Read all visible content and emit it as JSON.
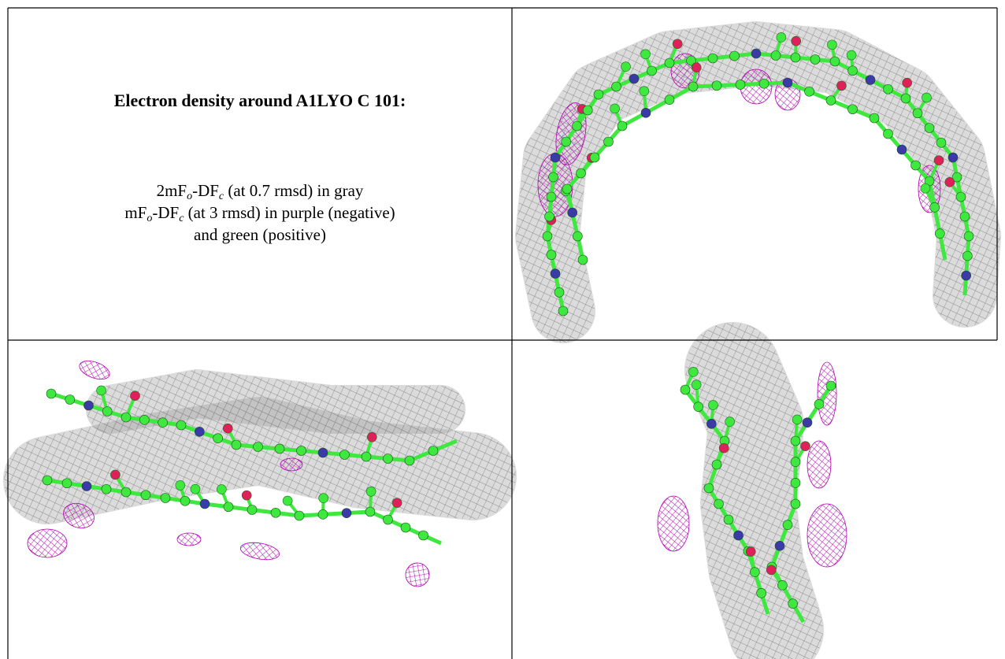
{
  "heading": "Electron density around A1LYO C 101:",
  "legend": [
    {
      "pre": "2mF",
      "sub1": "o",
      "mid": "-DF",
      "sub2": "c",
      "post": " (at 0.7 rmsd) in gray"
    },
    {
      "pre": "mF",
      "sub1": "o",
      "mid": "-DF",
      "sub2": "c",
      "post": " (at 3 rmsd) in purple (negative)"
    },
    {
      "post": "and green (positive)"
    }
  ]
}
